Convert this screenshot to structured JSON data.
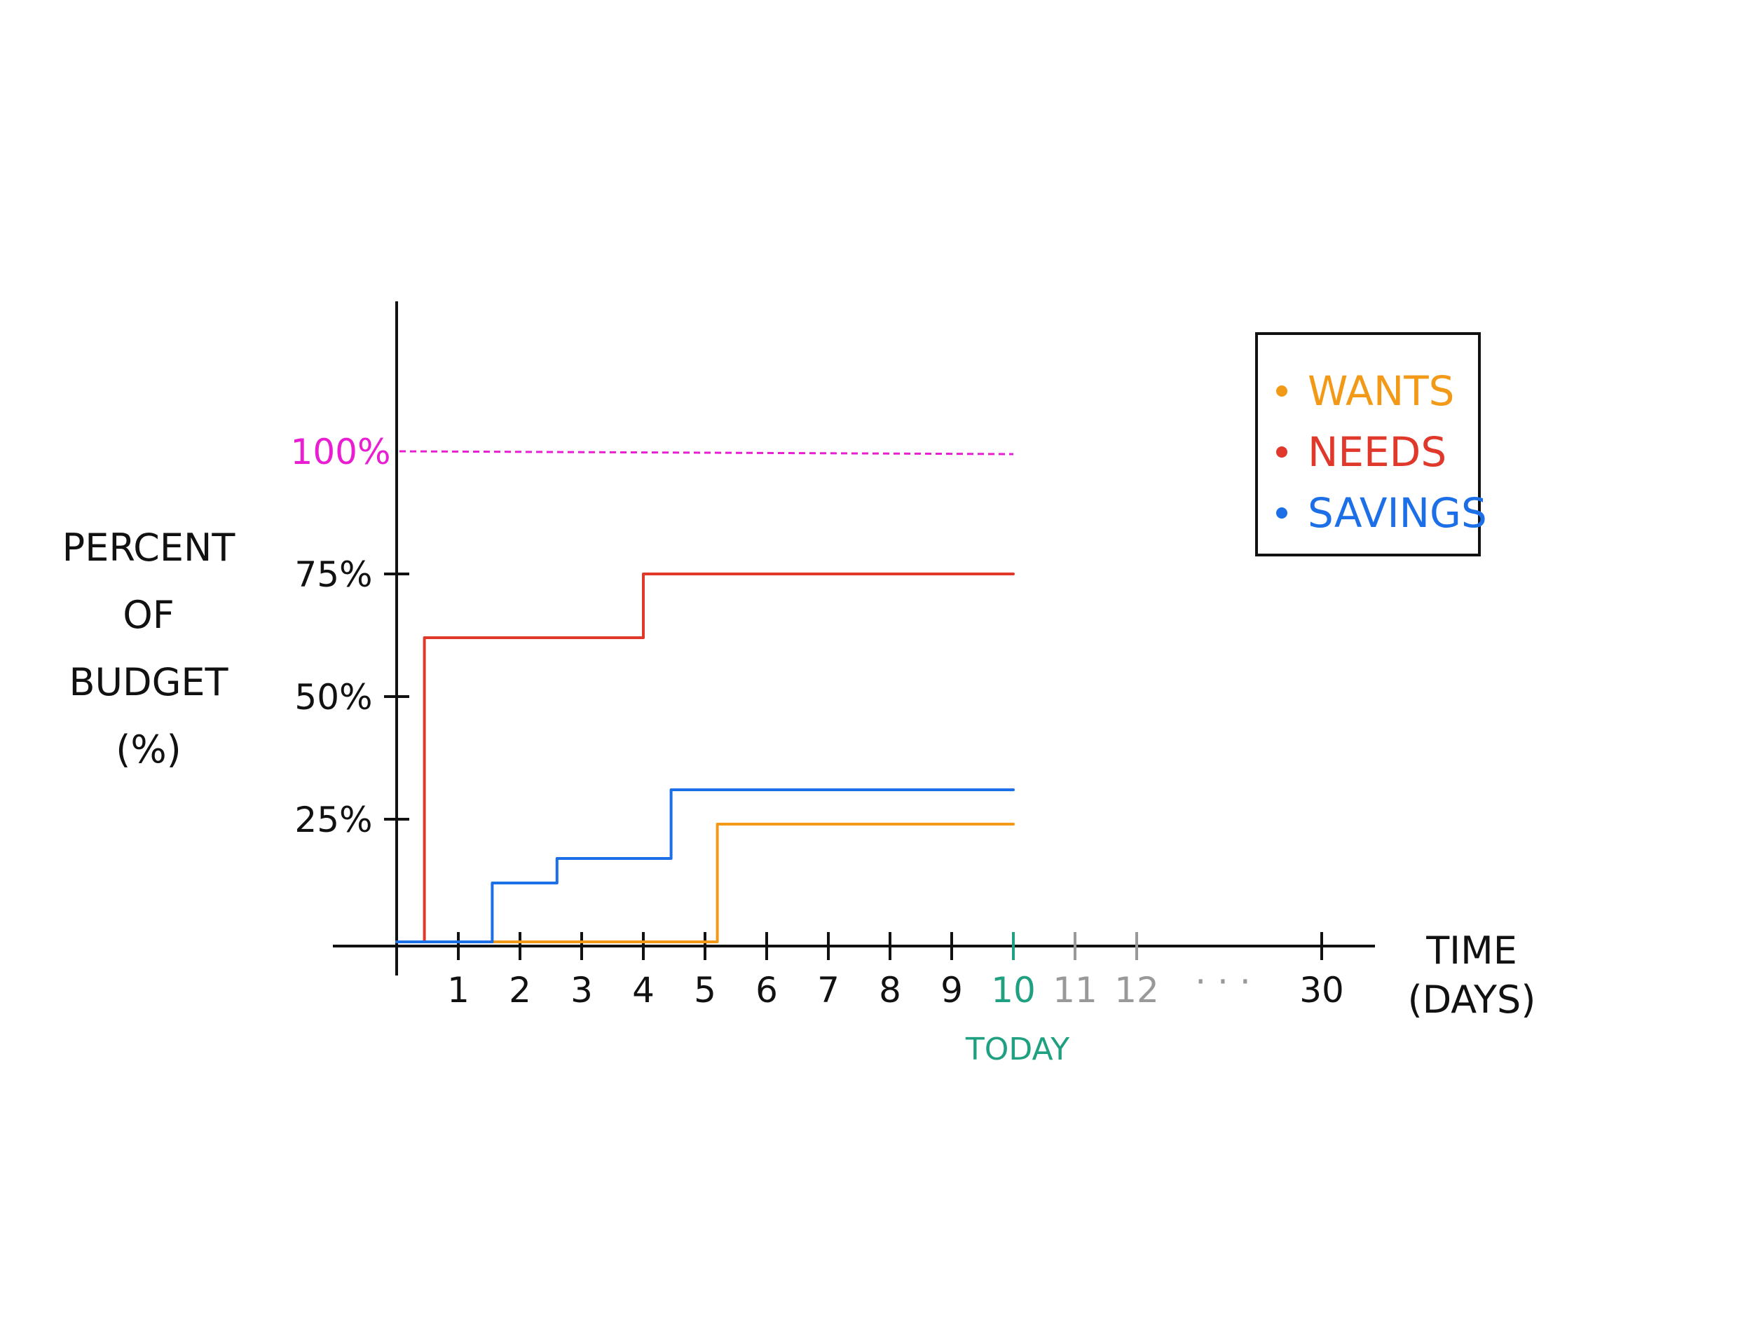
{
  "chart_data": {
    "type": "line",
    "step": true,
    "ylabel": [
      "PERCENT",
      "OF",
      "BUDGET",
      "(%)"
    ],
    "xlabel": [
      "TIME",
      "(DAYS)"
    ],
    "yticks": [
      {
        "value": 25,
        "label": "25%"
      },
      {
        "value": 50,
        "label": "50%"
      },
      {
        "value": 75,
        "label": "75%"
      }
    ],
    "reference_line": {
      "value": 100,
      "label": "100%",
      "color": "#e91ed2",
      "style": "dashed"
    },
    "xticks": [
      {
        "value": 1,
        "label": "1",
        "color": "#111111"
      },
      {
        "value": 2,
        "label": "2",
        "color": "#111111"
      },
      {
        "value": 3,
        "label": "3",
        "color": "#111111"
      },
      {
        "value": 4,
        "label": "4",
        "color": "#111111"
      },
      {
        "value": 5,
        "label": "5",
        "color": "#111111"
      },
      {
        "value": 6,
        "label": "6",
        "color": "#111111"
      },
      {
        "value": 7,
        "label": "7",
        "color": "#111111"
      },
      {
        "value": 8,
        "label": "8",
        "color": "#111111"
      },
      {
        "value": 9,
        "label": "9",
        "color": "#111111"
      },
      {
        "value": 10,
        "label": "10",
        "color": "#1fa080"
      },
      {
        "value": 11,
        "label": "11",
        "color": "#999999"
      },
      {
        "value": 12,
        "label": "12",
        "color": "#999999"
      },
      {
        "value": 30,
        "label": "30",
        "color": "#111111"
      }
    ],
    "ellipsis": "· · ·",
    "today": {
      "value": 10,
      "label": "TODAY",
      "color": "#1fa080"
    },
    "series": [
      {
        "name": "WANTS",
        "color": "#f29a17",
        "x": [
          0,
          5.2,
          5.2,
          10
        ],
        "y": [
          0,
          0,
          24,
          24
        ]
      },
      {
        "name": "NEEDS",
        "color": "#e0382b",
        "x": [
          0,
          0.45,
          0.45,
          4.0,
          4.0,
          10
        ],
        "y": [
          0,
          0,
          62,
          62,
          75,
          75
        ]
      },
      {
        "name": "SAVINGS",
        "color": "#1d6fe8",
        "x": [
          0,
          1.55,
          1.55,
          2.6,
          2.6,
          4.45,
          4.45,
          10
        ],
        "y": [
          0,
          0,
          12,
          12,
          17,
          17,
          31,
          31
        ]
      }
    ],
    "legend_position": "top-right",
    "grid": false
  }
}
